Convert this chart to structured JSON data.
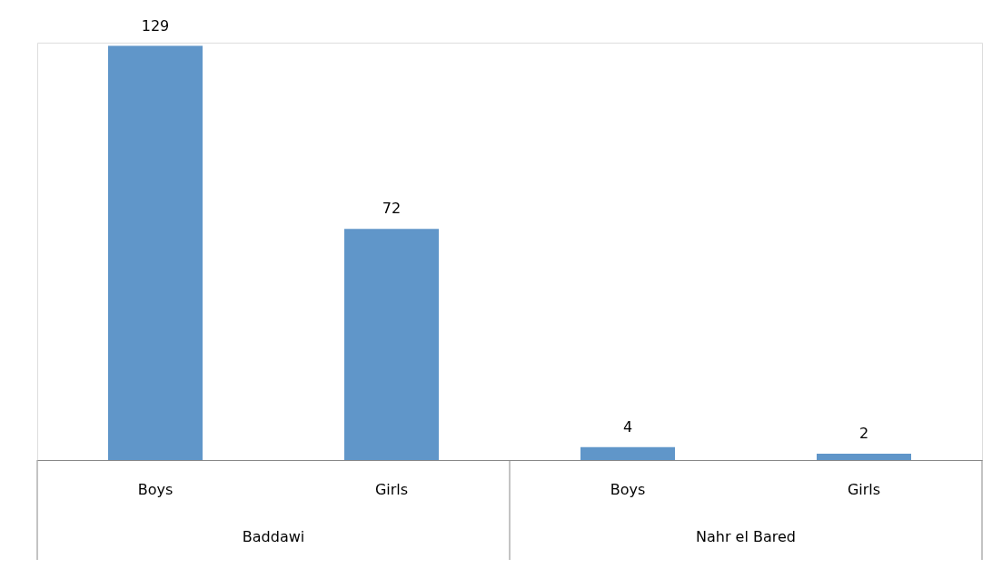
{
  "chart_data": {
    "type": "bar",
    "categories": [
      "Boys",
      "Girls",
      "Boys",
      "Girls"
    ],
    "values": [
      129,
      72,
      4,
      2
    ],
    "color": "#6096c9",
    "data_labels": true,
    "grid": false,
    "tick_labels": "x",
    "annotations": [
      "Baddawi",
      "Nahr el Bared"
    ]
  }
}
